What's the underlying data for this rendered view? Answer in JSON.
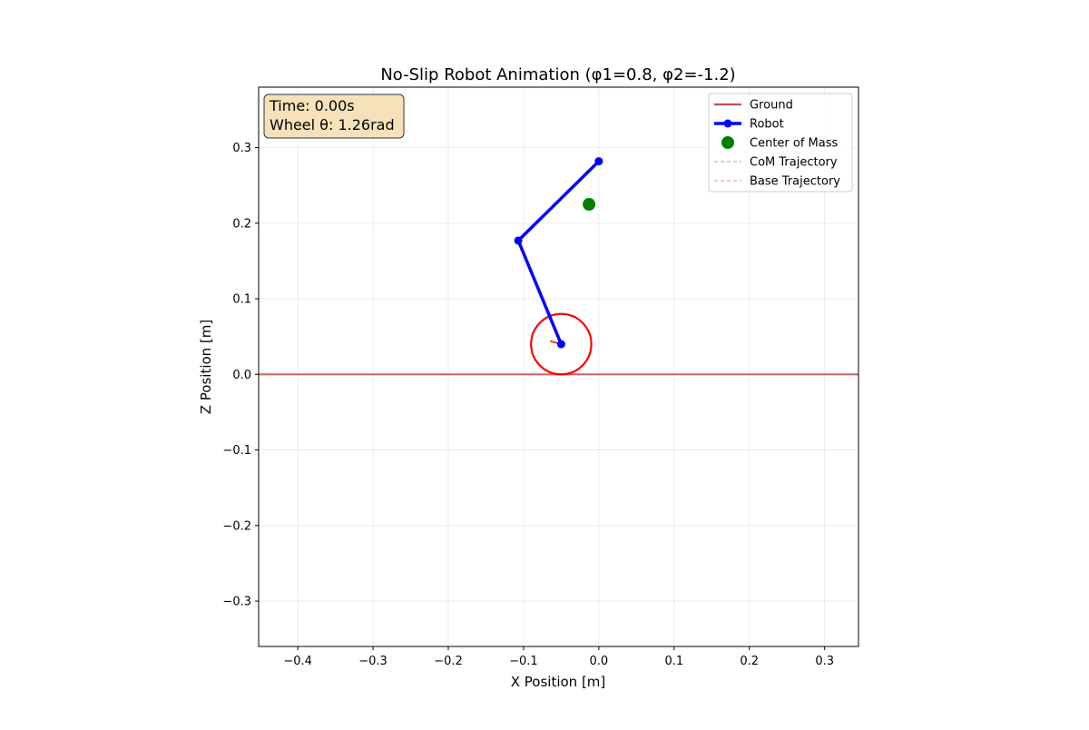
{
  "chart_data": {
    "type": "line",
    "title": "No-Slip Robot Animation (φ1=0.8, φ2=-1.2)",
    "xlabel": "X Position [m]",
    "ylabel": "Z Position [m]",
    "xlim": [
      -0.452,
      0.345
    ],
    "ylim": [
      -0.36,
      0.38
    ],
    "xticks": [
      -0.4,
      -0.3,
      -0.2,
      -0.1,
      0.0,
      0.1,
      0.2,
      0.3
    ],
    "yticks": [
      -0.3,
      -0.2,
      -0.1,
      0.0,
      0.1,
      0.2,
      0.3
    ],
    "xtick_labels": [
      "−0.4",
      "−0.3",
      "−0.2",
      "−0.1",
      "0.0",
      "0.1",
      "0.2",
      "0.3"
    ],
    "ytick_labels": [
      "−0.3",
      "−0.2",
      "−0.1",
      "0.0",
      "0.1",
      "0.2",
      "0.3"
    ],
    "grid": true,
    "legend_position": "top-right",
    "info_box": {
      "time_text": "Time: 0.00s",
      "wheel_text": "Wheel θ: 1.26rad"
    },
    "ground": {
      "name": "Ground",
      "z": 0.0,
      "color": "#c44e52"
    },
    "robot": {
      "name": "Robot",
      "color": "#0000ff",
      "joints": [
        {
          "x": -0.05,
          "z": 0.04
        },
        {
          "x": -0.107,
          "z": 0.177
        },
        {
          "x": 0.0,
          "z": 0.282
        }
      ]
    },
    "wheel": {
      "center": {
        "x": -0.05,
        "z": 0.04
      },
      "radius": 0.04,
      "theta": 1.26,
      "color": "#ff0000"
    },
    "center_of_mass": {
      "name": "Center of Mass",
      "x": -0.013,
      "z": 0.225,
      "color": "#008000"
    },
    "com_trajectory": {
      "name": "CoM Trajectory",
      "color": "#7fbf7f",
      "points": []
    },
    "base_trajectory": {
      "name": "Base Trajectory",
      "color": "#ff8080",
      "points": []
    },
    "legend": [
      {
        "label": "Ground",
        "kind": "line",
        "color": "#c44e52"
      },
      {
        "label": "Robot",
        "kind": "line-marker",
        "color": "#0000ff"
      },
      {
        "label": "Center of Mass",
        "kind": "dot",
        "color": "#008000"
      },
      {
        "label": "CoM Trajectory",
        "kind": "dashed",
        "color": "#7fbf7f"
      },
      {
        "label": "Base Trajectory",
        "kind": "dashed",
        "color": "#ff8080"
      }
    ]
  }
}
